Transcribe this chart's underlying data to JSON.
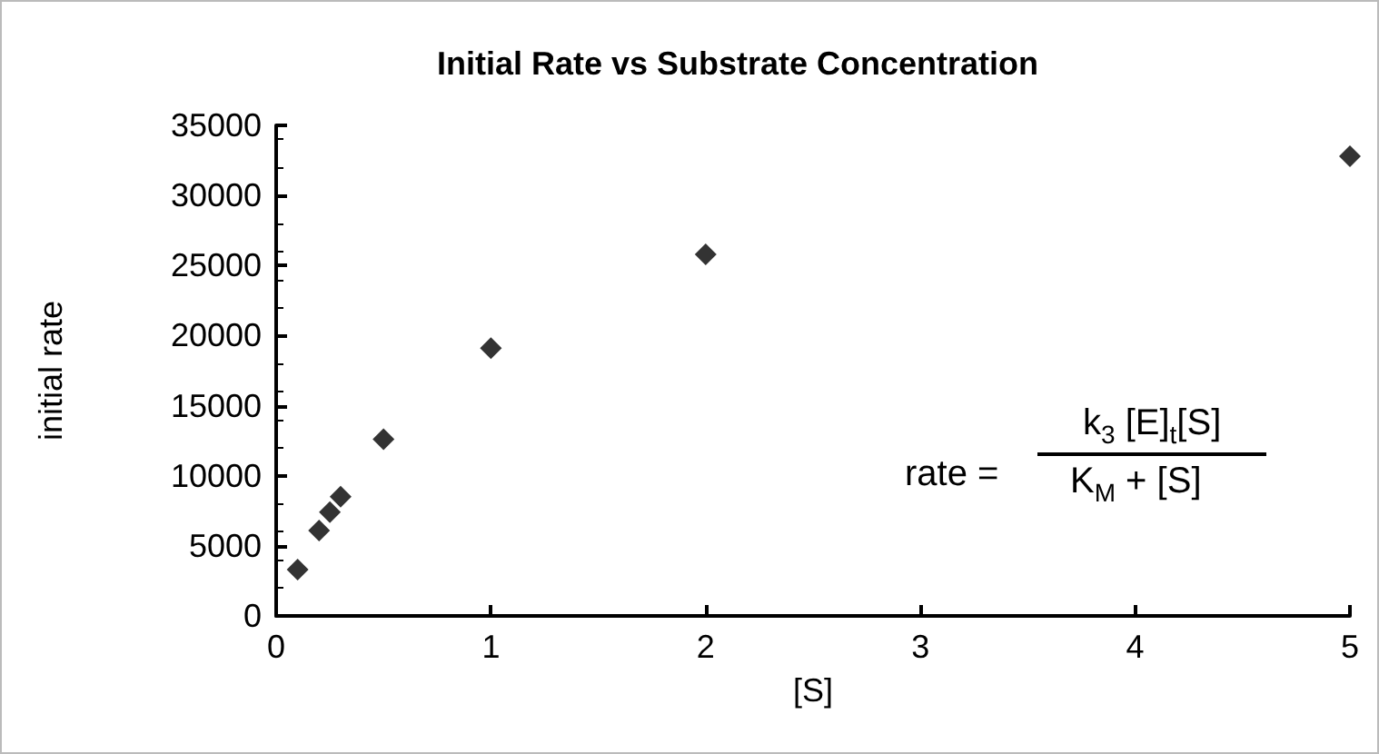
{
  "chart_data": {
    "type": "scatter",
    "title": "Initial Rate vs Substrate Concentration",
    "xlabel": "[S]",
    "ylabel": "initial rate",
    "x": [
      0.1,
      0.2,
      0.25,
      0.3,
      0.5,
      1,
      2,
      5
    ],
    "values": [
      3300,
      6100,
      7400,
      8500,
      12600,
      19100,
      25800,
      32800
    ],
    "color": "#000000",
    "marker": "diamond",
    "grid": false,
    "xlim": [
      0,
      5
    ],
    "xticks": [
      0,
      1,
      2,
      3,
      4,
      5
    ],
    "ylim": [
      0,
      35000
    ],
    "yticks": [
      0,
      5000,
      10000,
      15000,
      20000,
      25000,
      30000,
      35000
    ],
    "annotations": [
      "rate =",
      "k$_{3}$ [E]$_{t}$[S]",
      "K$_{M}$ + [S]"
    ]
  }
}
